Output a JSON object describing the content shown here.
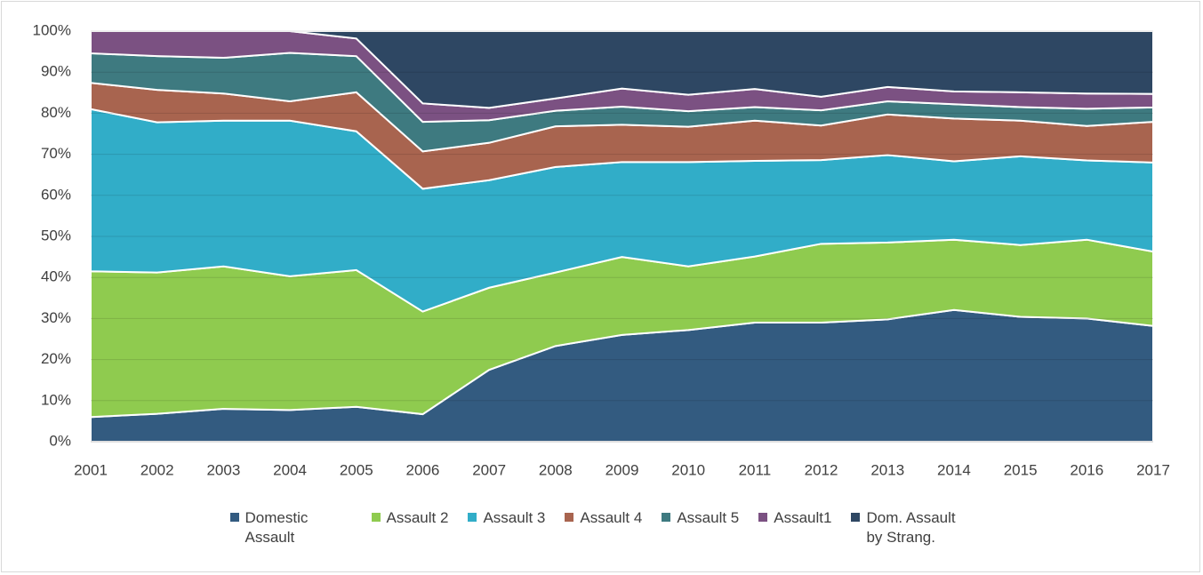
{
  "chart_data": {
    "type": "stacked_area",
    "categories": [
      "2001",
      "2002",
      "2003",
      "2004",
      "2005",
      "2006",
      "2007",
      "2008",
      "2009",
      "2010",
      "2011",
      "2012",
      "2013",
      "2014",
      "2015",
      "2016",
      "2017"
    ],
    "series": [
      {
        "name": "Domestic Assault",
        "color": "#335b80",
        "values": [
          6,
          6.8,
          8,
          7.7,
          8.5,
          6.7,
          17.5,
          23.3,
          26,
          27.2,
          29,
          29,
          29.8,
          32.1,
          30.4,
          30,
          28.2
        ]
      },
      {
        "name": "Assault 2",
        "color": "#8fcb4f",
        "values": [
          35.5,
          34.4,
          34.7,
          32.6,
          33.3,
          25,
          20,
          17.9,
          19,
          15.5,
          16.1,
          19.2,
          18.7,
          17.1,
          17.5,
          19.2,
          18.1
        ]
      },
      {
        "name": "Assault 3",
        "color": "#31adc8",
        "values": [
          39.5,
          36.6,
          35.5,
          37.9,
          33.8,
          29.9,
          26.2,
          25.7,
          23.1,
          25.4,
          23.3,
          20.4,
          21.3,
          19.1,
          21.6,
          19.3,
          21.7
        ]
      },
      {
        "name": "Assault 4",
        "color": "#a8644f",
        "values": [
          6.4,
          7.9,
          6.6,
          4.7,
          9.5,
          9.1,
          9.1,
          9.9,
          9.1,
          8.6,
          9.8,
          8.4,
          9.9,
          10.4,
          8.7,
          8.4,
          9.9
        ]
      },
      {
        "name": "Assault 5",
        "color": "#3e7a80",
        "values": [
          7.2,
          8.2,
          8.7,
          11.8,
          8.8,
          7.2,
          5.5,
          3.8,
          4.4,
          3.8,
          3.3,
          3.7,
          3.2,
          3.5,
          3.3,
          4.2,
          3.5
        ]
      },
      {
        "name": "Assault1",
        "color": "#7b5182",
        "values": [
          5.4,
          6.1,
          6.5,
          5.3,
          4.3,
          4.5,
          3,
          3,
          4.4,
          4,
          4.4,
          3.3,
          3.5,
          3.1,
          3.6,
          3.7,
          3.3
        ]
      },
      {
        "name": "Dom. Assault by Strang.",
        "color": "#2e4763",
        "values": [
          0,
          0,
          0,
          0,
          1.8,
          17.6,
          18.7,
          16.4,
          14,
          15.5,
          14.1,
          16,
          13.6,
          14.7,
          14.9,
          15.2,
          15.3
        ]
      }
    ],
    "ylim": [
      0,
      100
    ],
    "yticks": [
      {
        "value": 0,
        "label": "0%"
      },
      {
        "value": 10,
        "label": "10%"
      },
      {
        "value": 20,
        "label": "20%"
      },
      {
        "value": 30,
        "label": "30%"
      },
      {
        "value": 40,
        "label": "40%"
      },
      {
        "value": 50,
        "label": "50%"
      },
      {
        "value": 60,
        "label": "60%"
      },
      {
        "value": 70,
        "label": "70%"
      },
      {
        "value": 80,
        "label": "80%"
      },
      {
        "value": 90,
        "label": "90%"
      },
      {
        "value": 100,
        "label": "100%"
      }
    ],
    "grid": true,
    "legend": "bottom"
  }
}
